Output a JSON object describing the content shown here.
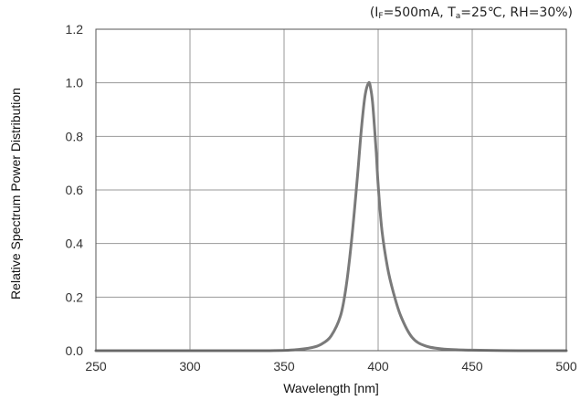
{
  "conditions": {
    "open": "(",
    "if_main": "I",
    "if_sub": "F",
    "if_value": "=500mA, ",
    "ta_main": "T",
    "ta_sub": "a",
    "ta_value": "=25℃, RH=30%)"
  },
  "chart_data": {
    "type": "line",
    "title": "",
    "xlabel": "Wavelength [nm]",
    "ylabel": "Relative Spectrum Power Distribution",
    "xlim": [
      250,
      500
    ],
    "ylim": [
      0,
      1.2
    ],
    "x_ticks": [
      "250",
      "300",
      "350",
      "400",
      "450",
      "500"
    ],
    "y_ticks": [
      "0.0",
      "0.2",
      "0.4",
      "0.6",
      "0.8",
      "1.0",
      "1.2"
    ],
    "grid": true,
    "legend": "none",
    "color": "#7a7a7a",
    "series": [
      {
        "x": [
          250,
          300,
          340,
          355,
          365,
          370,
          375,
          380,
          383,
          386,
          389,
          391,
          393,
          395,
          396,
          397,
          398,
          399,
          400,
          402,
          405,
          408,
          412,
          418,
          425,
          435,
          450,
          475,
          500
        ],
        "y": [
          0.0,
          0.0,
          0.0,
          0.003,
          0.012,
          0.025,
          0.055,
          0.13,
          0.24,
          0.42,
          0.65,
          0.82,
          0.95,
          1.0,
          0.98,
          0.93,
          0.84,
          0.74,
          0.62,
          0.45,
          0.31,
          0.22,
          0.13,
          0.05,
          0.018,
          0.006,
          0.002,
          0.0,
          0.0
        ]
      }
    ]
  }
}
